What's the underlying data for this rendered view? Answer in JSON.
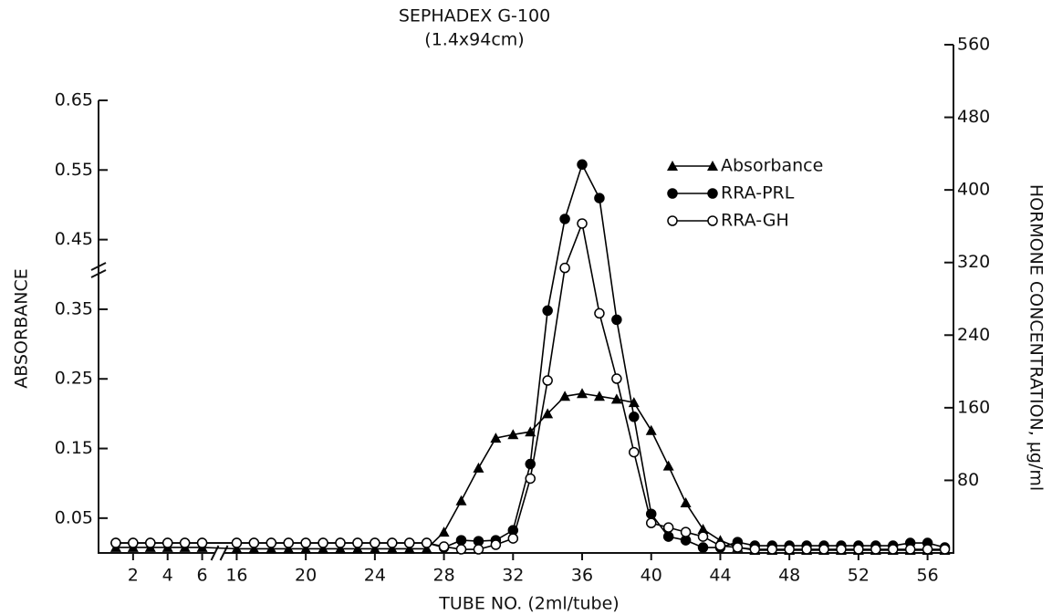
{
  "chart_data": {
    "type": "line",
    "title": "SEPHADEX G-100",
    "subtitle": "(1.4x94cm)",
    "xlabel": "TUBE NO. (2ml/tube)",
    "ylabel": "ABSORBANCE",
    "y2label": "HORMONE CONCENTRATION, µg/ml",
    "x": [
      1,
      2,
      3,
      4,
      5,
      6,
      16,
      17,
      18,
      19,
      20,
      21,
      22,
      23,
      24,
      25,
      26,
      27,
      28,
      29,
      30,
      31,
      32,
      33,
      34,
      35,
      36,
      37,
      38,
      39,
      40,
      41,
      42,
      43,
      44,
      45,
      46,
      47,
      48,
      49,
      50,
      51,
      52,
      53,
      54,
      55,
      56,
      57
    ],
    "xbreak": [
      6,
      16
    ],
    "xlim": [
      0,
      57.5
    ],
    "xticks": [
      2,
      4,
      6,
      16,
      20,
      24,
      28,
      32,
      36,
      40,
      44,
      48,
      52,
      56
    ],
    "ylim": [
      0,
      0.65
    ],
    "yticks": [
      0.05,
      0.15,
      0.25,
      0.35,
      0.45,
      0.55,
      0.65
    ],
    "y2lim": [
      0,
      560
    ],
    "y2ticks": [
      80,
      160,
      240,
      320,
      400,
      480,
      560
    ],
    "series": [
      {
        "name": "Absorbance",
        "color": "#000000",
        "marker": "triangle",
        "values": [
          0.008,
          0.008,
          0.008,
          0.008,
          0.008,
          0.008,
          0.006,
          0.006,
          0.006,
          0.006,
          0.006,
          0.006,
          0.006,
          0.006,
          0.006,
          0.006,
          0.006,
          0.006,
          0.03,
          0.075,
          0.122,
          0.165,
          0.17,
          0.174,
          0.2,
          0.225,
          0.229,
          0.225,
          0.221,
          0.216,
          0.176,
          0.125,
          0.072,
          0.034,
          0.018,
          0.008,
          0.004,
          0.004,
          0.004,
          0.004,
          0.004,
          0.004,
          0.004,
          0.004,
          0.004,
          0.004,
          0.004,
          0.004
        ]
      },
      {
        "name": "RRA-PRL",
        "color": "#000000",
        "marker": "circle",
        "axis": "y2",
        "values": [
          11,
          11,
          11,
          11,
          11,
          11,
          11,
          11,
          11,
          11,
          11,
          11,
          11,
          11,
          11,
          11,
          11,
          11,
          6,
          14,
          13,
          14,
          25,
          98,
          267,
          368,
          428,
          391,
          257,
          150,
          43,
          18,
          14,
          6,
          6,
          12,
          8,
          8,
          8,
          8,
          8,
          8,
          8,
          8,
          8,
          11,
          11,
          6
        ]
      },
      {
        "name": "RRA-GH",
        "color": "#000000",
        "marker": "open-circle",
        "axis": "y2",
        "values": [
          11,
          11,
          11,
          11,
          11,
          11,
          11,
          11,
          11,
          11,
          11,
          11,
          11,
          11,
          11,
          11,
          11,
          11,
          7,
          4,
          4,
          9,
          16,
          82,
          190,
          314,
          363,
          264,
          192,
          111,
          33,
          28,
          23,
          18,
          8,
          6,
          4,
          4,
          4,
          4,
          4,
          4,
          4,
          4,
          4,
          4,
          4,
          4
        ]
      }
    ]
  }
}
